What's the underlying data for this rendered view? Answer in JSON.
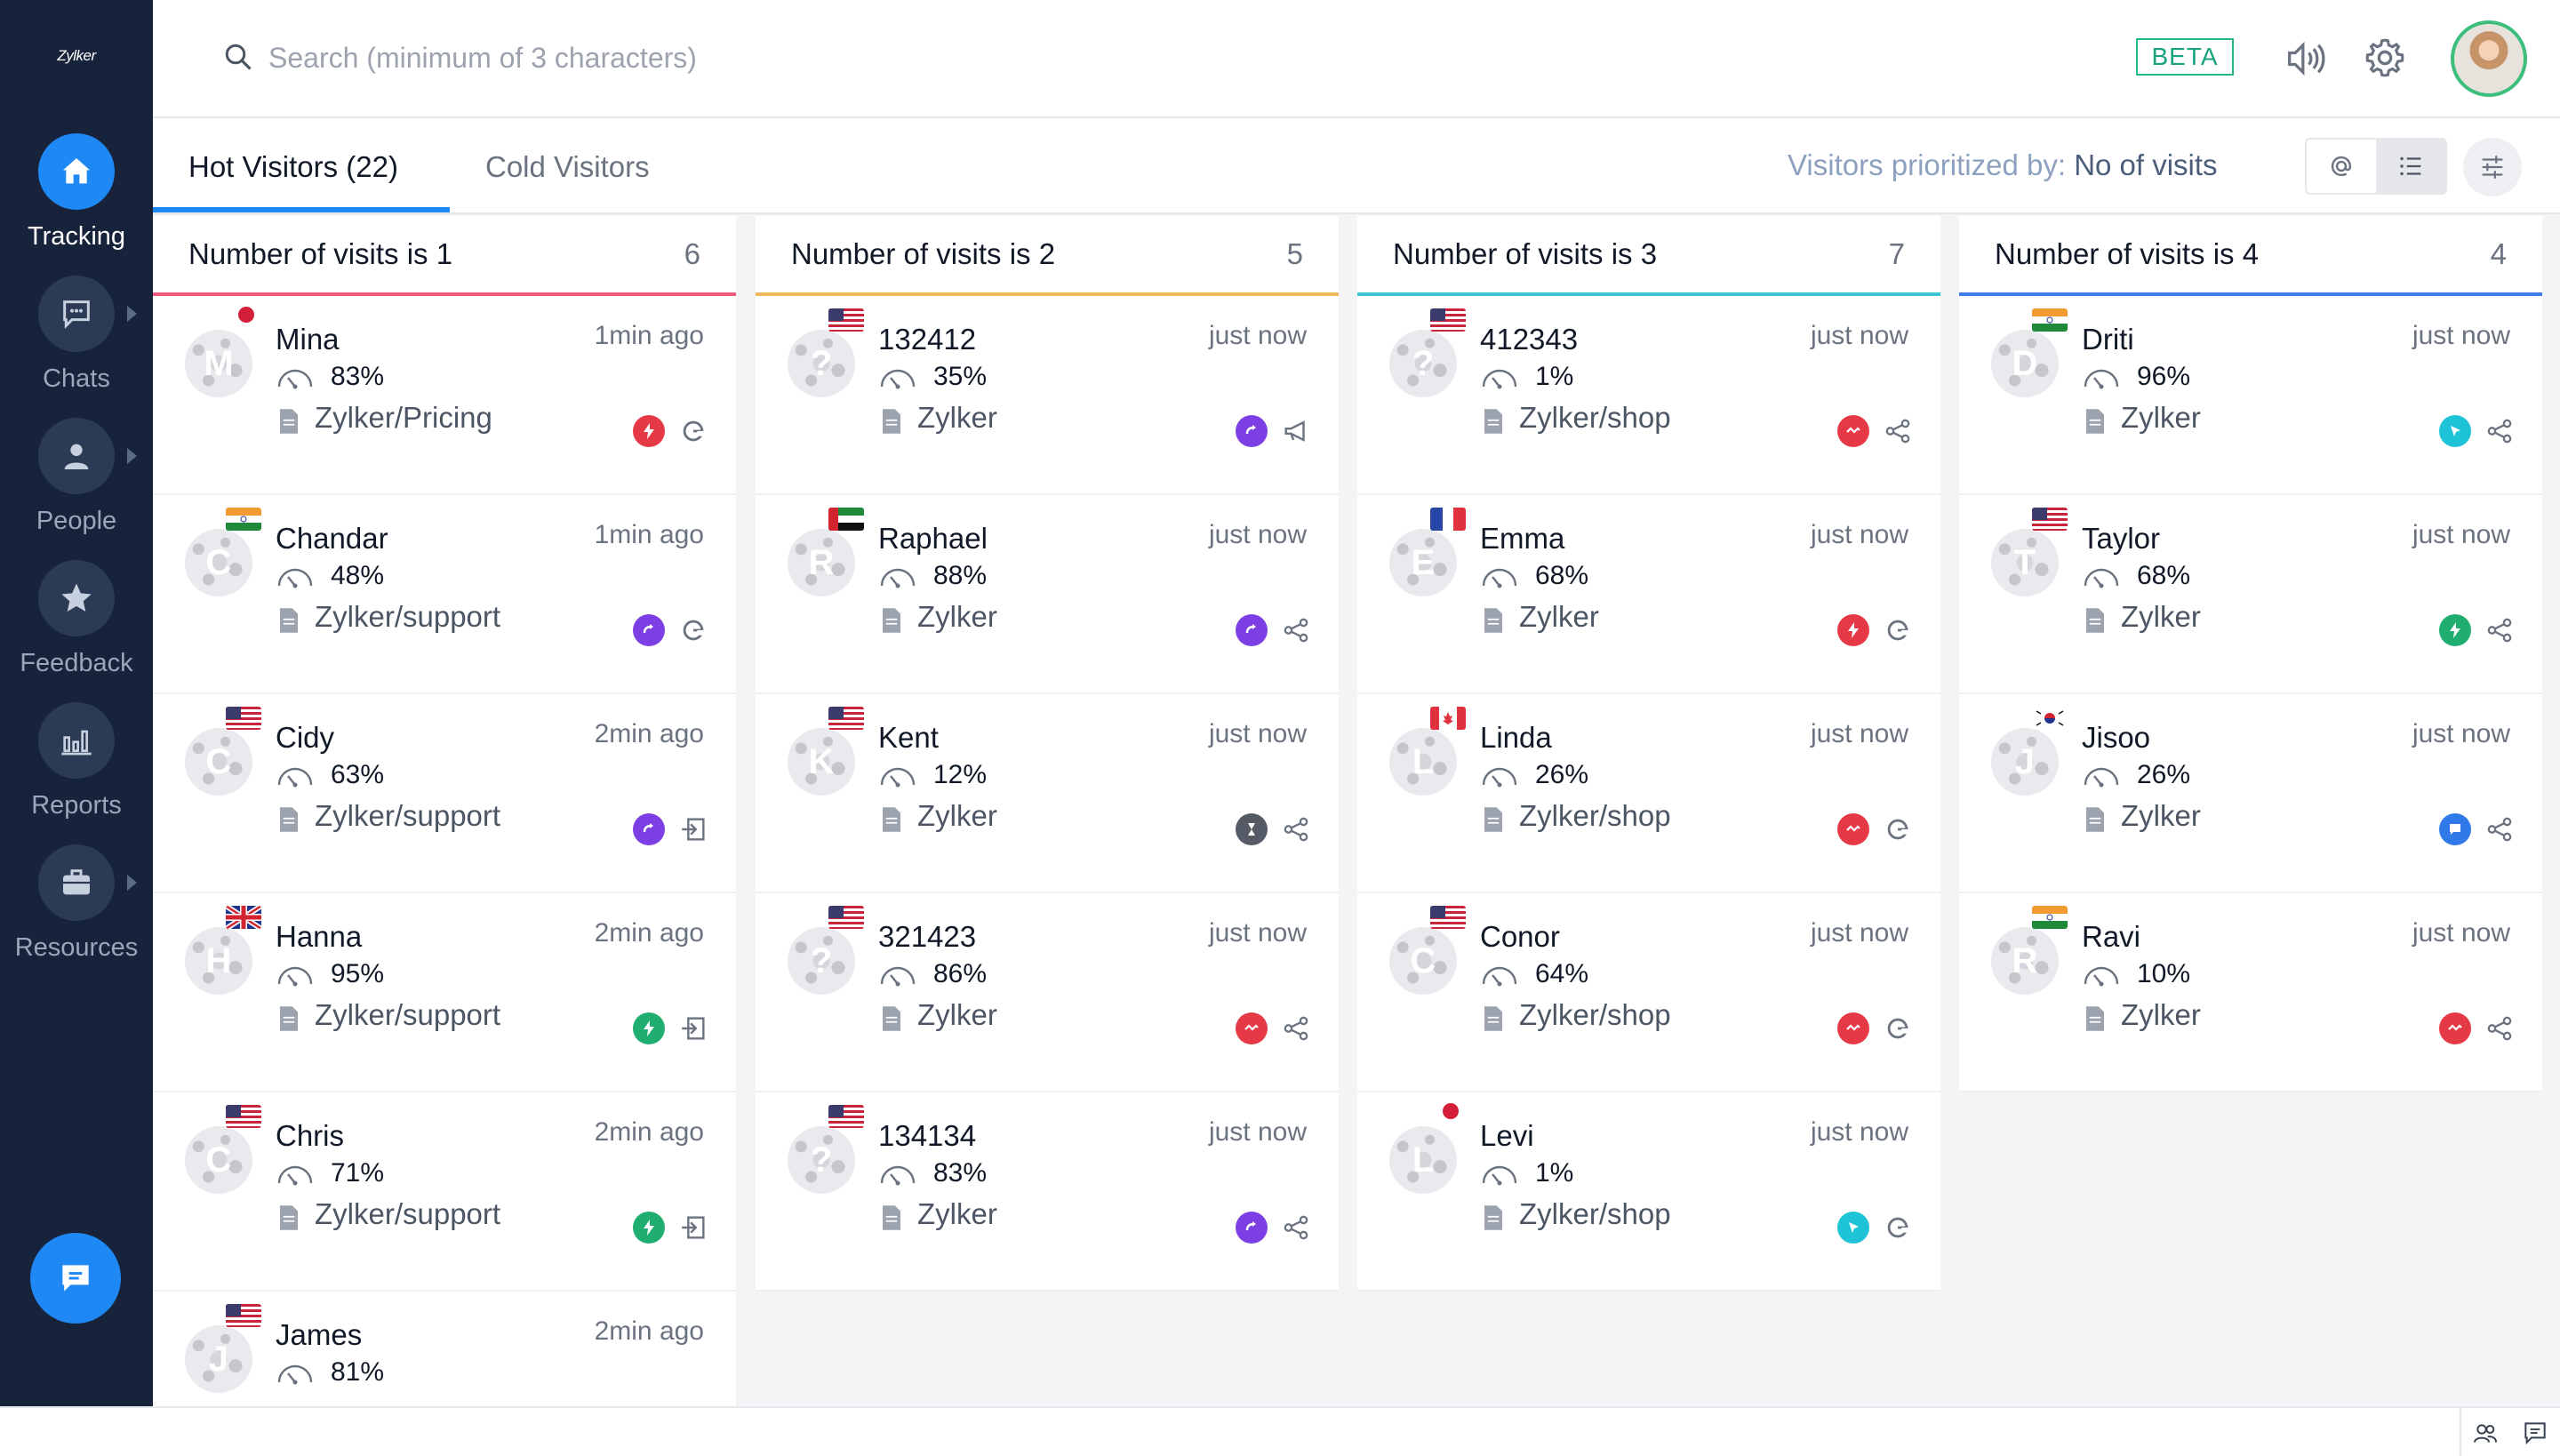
{
  "brand": "Zylker",
  "sidebar": {
    "items": [
      {
        "label": "Tracking",
        "icon": "home-icon",
        "active": true
      },
      {
        "label": "Chats",
        "icon": "chat-bubble-icon",
        "active": false
      },
      {
        "label": "People",
        "icon": "person-icon",
        "active": false
      },
      {
        "label": "Feedback",
        "icon": "star-icon",
        "active": false
      },
      {
        "label": "Reports",
        "icon": "bar-chart-icon",
        "active": false
      },
      {
        "label": "Resources",
        "icon": "briefcase-icon",
        "active": false
      }
    ]
  },
  "header": {
    "search_placeholder": "Search (minimum of 3 characters)",
    "beta_label": "BETA"
  },
  "tabs": {
    "hot": "Hot Visitors (22)",
    "cold": "Cold Visitors",
    "priority_label": "Visitors prioritized by:",
    "priority_value": "No of visits"
  },
  "colors": {
    "accent": "#1e88f5",
    "col1": "#ee5a7a",
    "col2": "#f4b860",
    "col3": "#3ec5d6",
    "col4": "#3f7de8"
  },
  "columns": [
    {
      "title": "Number of visits is 1",
      "count": "6",
      "visitors": [
        {
          "initial": "M",
          "name": "Mina",
          "time": "1min ago",
          "score": "83%",
          "page": "Zylker/Pricing",
          "flag": "jp",
          "source": "red-bolt",
          "action": "google"
        },
        {
          "initial": "C",
          "name": "Chandar",
          "time": "1min ago",
          "score": "48%",
          "page": "Zylker/support",
          "flag": "in",
          "source": "purple-redirect",
          "action": "google"
        },
        {
          "initial": "C",
          "name": "Cidy",
          "time": "2min ago",
          "score": "63%",
          "page": "Zylker/support",
          "flag": "us",
          "source": "purple-redirect",
          "action": "enter"
        },
        {
          "initial": "H",
          "name": "Hanna",
          "time": "2min ago",
          "score": "95%",
          "page": "Zylker/support",
          "flag": "uk",
          "source": "green-bolt",
          "action": "enter"
        },
        {
          "initial": "C",
          "name": "Chris",
          "time": "2min ago",
          "score": "71%",
          "page": "Zylker/support",
          "flag": "us",
          "source": "green-bolt",
          "action": "enter"
        },
        {
          "initial": "J",
          "name": "James",
          "time": "2min ago",
          "score": "81%",
          "page": "",
          "flag": "us",
          "source": "",
          "action": ""
        }
      ]
    },
    {
      "title": "Number of visits is 2",
      "count": "5",
      "visitors": [
        {
          "initial": "?",
          "name": "132412",
          "time": "just now",
          "score": "35%",
          "page": "Zylker",
          "flag": "us",
          "source": "purple-redirect",
          "action": "megaphone"
        },
        {
          "initial": "R",
          "name": "Raphael",
          "time": "just now",
          "score": "88%",
          "page": "Zylker",
          "flag": "ae",
          "source": "purple-redirect",
          "action": "share"
        },
        {
          "initial": "K",
          "name": "Kent",
          "time": "just now",
          "score": "12%",
          "page": "Zylker",
          "flag": "us",
          "source": "gray-timer",
          "action": "share"
        },
        {
          "initial": "?",
          "name": "321423",
          "time": "just now",
          "score": "86%",
          "page": "Zylker",
          "flag": "us",
          "source": "red-wave",
          "action": "share"
        },
        {
          "initial": "?",
          "name": "134134",
          "time": "just now",
          "score": "83%",
          "page": "Zylker",
          "flag": "us",
          "source": "purple-redirect",
          "action": "share"
        }
      ]
    },
    {
      "title": "Number of visits is 3",
      "count": "7",
      "visitors": [
        {
          "initial": "?",
          "name": "412343",
          "time": "just now",
          "score": "1%",
          "page": "Zylker/shop",
          "flag": "us",
          "source": "red-wave",
          "action": "share"
        },
        {
          "initial": "E",
          "name": "Emma",
          "time": "just now",
          "score": "68%",
          "page": "Zylker",
          "flag": "fr",
          "source": "red-bolt",
          "action": "google"
        },
        {
          "initial": "L",
          "name": "Linda",
          "time": "just now",
          "score": "26%",
          "page": "Zylker/shop",
          "flag": "ca",
          "source": "red-wave",
          "action": "google"
        },
        {
          "initial": "C",
          "name": "Conor",
          "time": "just now",
          "score": "64%",
          "page": "Zylker/shop",
          "flag": "us",
          "source": "red-wave",
          "action": "google"
        },
        {
          "initial": "L",
          "name": "Levi",
          "time": "just now",
          "score": "1%",
          "page": "Zylker/shop",
          "flag": "jp",
          "source": "teal-cursor",
          "action": "google"
        }
      ]
    },
    {
      "title": "Number of visits is 4",
      "count": "4",
      "visitors": [
        {
          "initial": "D",
          "name": "Driti",
          "time": "just now",
          "score": "96%",
          "page": "Zylker",
          "flag": "in",
          "source": "teal-cursor",
          "action": "share"
        },
        {
          "initial": "T",
          "name": "Taylor",
          "time": "just now",
          "score": "68%",
          "page": "Zylker",
          "flag": "us",
          "source": "green-bolt",
          "action": "share"
        },
        {
          "initial": "J",
          "name": "Jisoo",
          "time": "just now",
          "score": "26%",
          "page": "Zylker",
          "flag": "kr",
          "source": "blue-chat",
          "action": "share"
        },
        {
          "initial": "R",
          "name": "Ravi",
          "time": "just now",
          "score": "10%",
          "page": "Zylker",
          "flag": "in",
          "source": "red-wave",
          "action": "share"
        }
      ]
    }
  ]
}
